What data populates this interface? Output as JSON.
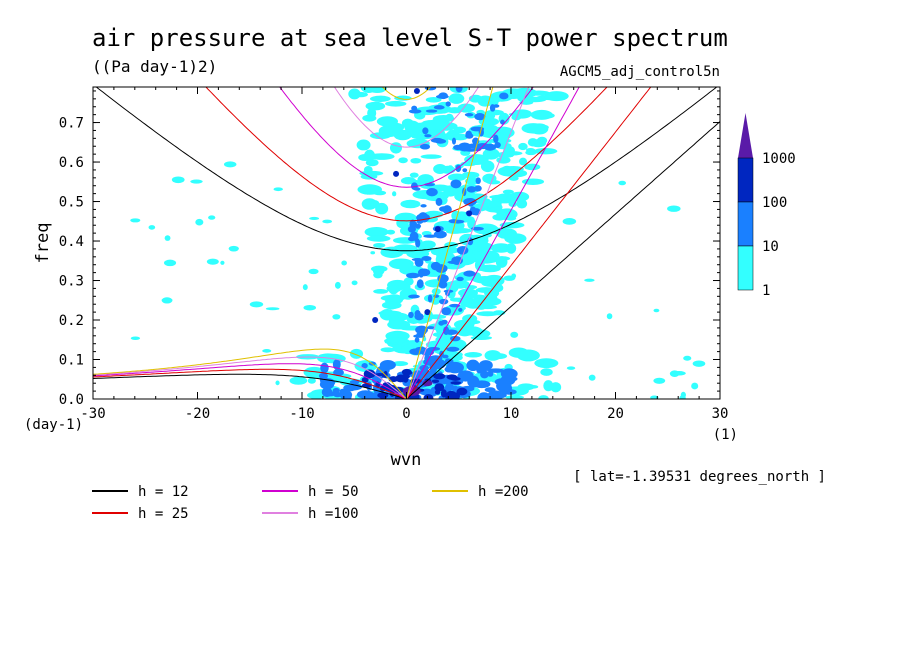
{
  "title": "air pressure at sea level S-T power spectrum",
  "units": "((Pa day-1)2)",
  "experiment": "AGCM5_adj_control5n",
  "latitude_note": "[ lat=-1.39531 degrees_north ]",
  "chart_data": {
    "type": "heatmap",
    "title": "air pressure at sea level S-T power spectrum",
    "xlabel": "wvn",
    "ylabel": "freq",
    "x_unit": "(1)",
    "y_unit": "(day-1)",
    "xlim": [
      -30,
      30
    ],
    "ylim": [
      0,
      0.79
    ],
    "x_ticks": [
      -30,
      -20,
      -10,
      0,
      10,
      20,
      30
    ],
    "x_tick_labels": [
      "-30",
      "-20",
      "-10",
      "0",
      "10",
      "20",
      "30"
    ],
    "y_ticks": [
      0.0,
      0.1,
      0.2,
      0.3,
      0.4,
      0.5,
      0.6,
      0.7
    ],
    "y_tick_labels": [
      "0.0",
      "0.1",
      "0.2",
      "0.3",
      "0.4",
      "0.5",
      "0.6",
      "0.7"
    ],
    "colorbar": {
      "levels": [
        "1",
        "10",
        "100",
        "1000"
      ],
      "colors": [
        "#33ffff",
        "#1a80ff",
        "#0026c0",
        "#5a1aa8"
      ],
      "extend": "max"
    },
    "dispersion_curves": [
      {
        "name": "h = 12",
        "color": "#000000"
      },
      {
        "name": "h = 25",
        "color": "#e00000"
      },
      {
        "name": "h = 50",
        "color": "#d000d0"
      },
      {
        "name": "h =100",
        "color": "#e080e0"
      },
      {
        "name": "h =200",
        "color": "#e0c000"
      }
    ]
  }
}
